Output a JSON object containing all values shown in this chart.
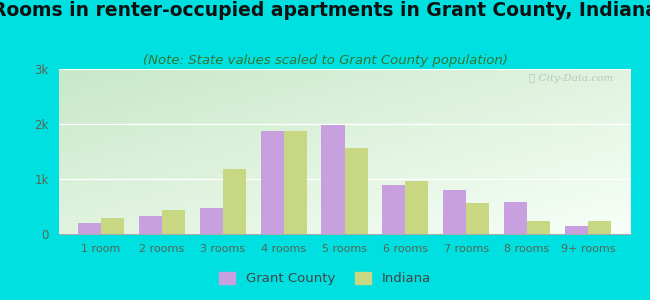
{
  "title": "Rooms in renter-occupied apartments in Grant County, Indiana",
  "subtitle": "(Note: State values scaled to Grant County population)",
  "categories": [
    "1 room",
    "2 rooms",
    "3 rooms",
    "4 rooms",
    "5 rooms",
    "6 rooms",
    "7 rooms",
    "8 rooms",
    "9+ rooms"
  ],
  "grant_county": [
    200,
    330,
    470,
    1880,
    1980,
    900,
    800,
    590,
    140
  ],
  "indiana": [
    290,
    430,
    1180,
    1880,
    1560,
    970,
    570,
    230,
    230
  ],
  "grant_color": "#c8a0e0",
  "indiana_color": "#c8d882",
  "background_outer": "#00e0e0",
  "background_inner_topleft": "#c8e8c8",
  "background_inner_bottomright": "#f8fff8",
  "ylim": [
    0,
    3000
  ],
  "yticks": [
    0,
    1000,
    2000,
    3000
  ],
  "ytick_labels": [
    "0",
    "1k",
    "2k",
    "3k"
  ],
  "bar_width": 0.38,
  "title_fontsize": 13.5,
  "subtitle_fontsize": 9.5,
  "legend_entries": [
    "Grant County",
    "Indiana"
  ],
  "watermark": "ⓘ City-Data.com"
}
